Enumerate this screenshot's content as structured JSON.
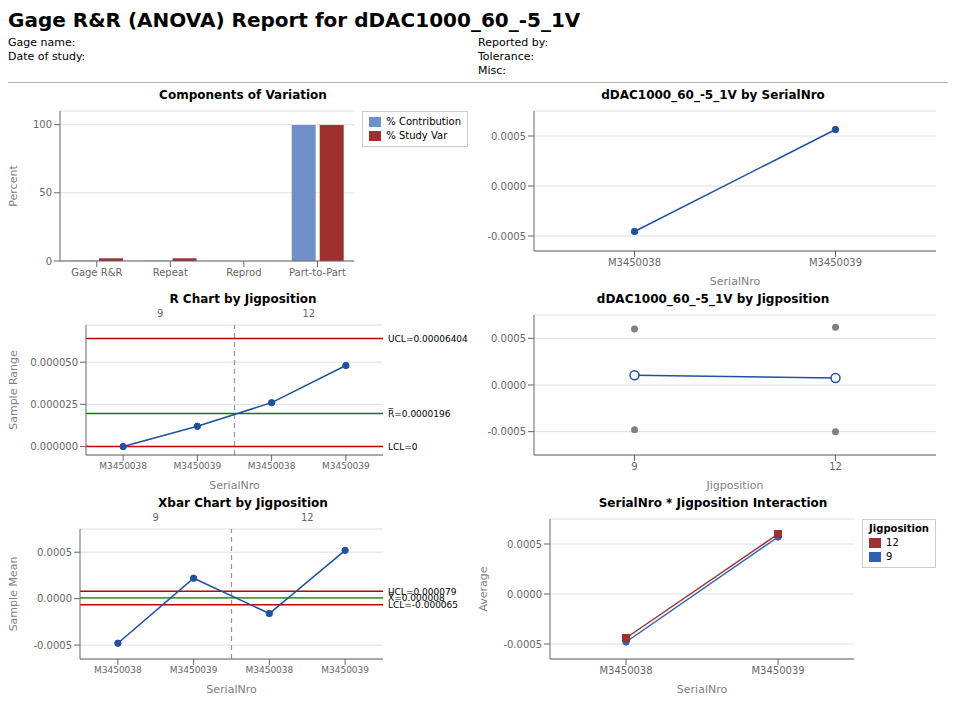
{
  "title": "Gage R&R (ANOVA) Report for dDAC1000_60_-5_1V",
  "annotations": [
    [
      "Gage name:",
      "Date of study:"
    ],
    [
      "Reported by:",
      "Tolerance:",
      "Misc:"
    ]
  ],
  "chart_data": [
    {
      "type": "bar",
      "title": "Components of Variation",
      "ylabel": "Percent",
      "categories": [
        "Gage R&R",
        "Repeat",
        "Reprod",
        "Part-to-Part"
      ],
      "series": [
        {
          "name": "% Contribution",
          "color": "#7090c8",
          "values": [
            0.3,
            0.3,
            0.0,
            99.7
          ]
        },
        {
          "name": "% Study Var",
          "color": "#a03030",
          "values": [
            2.0,
            2.0,
            0.0,
            99.8
          ]
        }
      ],
      "ylim": [
        0,
        110
      ],
      "yticks": [
        0,
        50,
        100
      ],
      "grid": true,
      "legend": "right"
    },
    {
      "type": "line",
      "title": "dDAC1000_60_-5_1V by SerialNro",
      "xlabel": "SerialNro",
      "categories": [
        "M3450038",
        "M3450039"
      ],
      "series": [
        {
          "color": "#2050a0",
          "marker": "circle",
          "values": [
            -0.000455,
            0.000565
          ]
        }
      ],
      "ylim": [
        -0.00065,
        0.00075
      ],
      "yticks": [
        -0.0005,
        {
          "value": 0,
          "label": "0.0000"
        },
        0.0005
      ],
      "grid": true
    },
    {
      "type": "line",
      "title": "R Chart by Jigposition",
      "xlabel": "SerialNro",
      "ylabel": "Sample Range",
      "categories": [
        "M3450038",
        "M3450039",
        "M3450038",
        "M3450039"
      ],
      "groups": [
        "9",
        "9",
        "12",
        "12"
      ],
      "group_divider": {
        "color": "#9090c0",
        "line_style": "dashed"
      },
      "series": [
        {
          "color": "#2050a0",
          "marker": "circle",
          "values": [
            0.0,
            1.2e-05,
            2.6e-05,
            4.8e-05
          ]
        }
      ],
      "reference_lines": [
        {
          "value": 6.404e-05,
          "label": "UCL=0.00006404",
          "color": "#c00000"
        },
        {
          "value": 1.96e-05,
          "label": "R̅=0.0000196",
          "color": "#008000"
        },
        {
          "value": 0.0,
          "label": "LCL=0",
          "color": "#c00000"
        }
      ],
      "ylim": [
        -5e-06,
        7.2e-05
      ],
      "yticks": [
        {
          "value": 0,
          "label": "0.000000"
        },
        2.5e-05,
        {
          "value": 5e-05,
          "label": "0.000050"
        }
      ],
      "grid": true
    },
    {
      "type": "line",
      "title": "dDAC1000_60_-5_1V by Jigposition",
      "xlabel": "Jigposition",
      "categories": [
        "9",
        "12"
      ],
      "series": [
        {
          "color": "#2050a0",
          "marker": "circle_open",
          "values": [
            0.000105,
            7.5e-05
          ]
        },
        {
          "type": "scatter",
          "color": "#808080",
          "marker": "circle",
          "values": [
            0.0006,
            0.00062
          ]
        },
        {
          "type": "scatter",
          "color": "#808080",
          "marker": "circle",
          "values": [
            -0.00048,
            -0.0005
          ]
        }
      ],
      "ylim": [
        -0.00075,
        0.00075
      ],
      "yticks": [
        -0.0005,
        {
          "value": 0,
          "label": "0.0000"
        },
        0.0005
      ],
      "grid": true
    },
    {
      "type": "line",
      "title": "Xbar Chart by Jigposition",
      "xlabel": "SerialNro",
      "ylabel": "Sample Mean",
      "categories": [
        "M3450038",
        "M3450039",
        "M3450038",
        "M3450039"
      ],
      "groups": [
        "9",
        "9",
        "12",
        "12"
      ],
      "group_divider": {
        "color": "#9090c0",
        "line_style": "dashed"
      },
      "series": [
        {
          "color": "#2050a0",
          "marker": "circle",
          "values": [
            -0.00048,
            0.00022,
            -0.00016,
            0.00052
          ]
        }
      ],
      "reference_lines": [
        {
          "value": 7.9e-05,
          "label": "UCL=0.000079",
          "color": "#c00000"
        },
        {
          "value": 8e-06,
          "label": "X̅=0.000008",
          "color": "#008000"
        },
        {
          "value": -6.5e-05,
          "label": "LCL=-0.000065",
          "color": "#c00000"
        }
      ],
      "ylim": [
        -0.00065,
        0.00075
      ],
      "yticks": [
        -0.0005,
        {
          "value": 0,
          "label": "0.0000"
        },
        0.0005
      ],
      "grid": true
    },
    {
      "type": "line",
      "title": "SerialNro * Jigposition Interaction",
      "xlabel": "SerialNro",
      "ylabel": "Average",
      "categories": [
        "M3450038",
        "M3450039"
      ],
      "series": [
        {
          "name": "9",
          "color": "#3060b0",
          "marker": "circle",
          "values": [
            -0.00048,
            0.00057
          ]
        },
        {
          "name": "12",
          "color": "#a03030",
          "marker": "square",
          "values": [
            -0.00044,
            0.0006
          ]
        }
      ],
      "ylim": [
        -0.00065,
        0.00075
      ],
      "yticks": [
        -0.0005,
        {
          "value": 0,
          "label": "0.0000"
        },
        0.0005
      ],
      "grid": true,
      "legend": "right",
      "legend_title": "Jigposition"
    }
  ]
}
